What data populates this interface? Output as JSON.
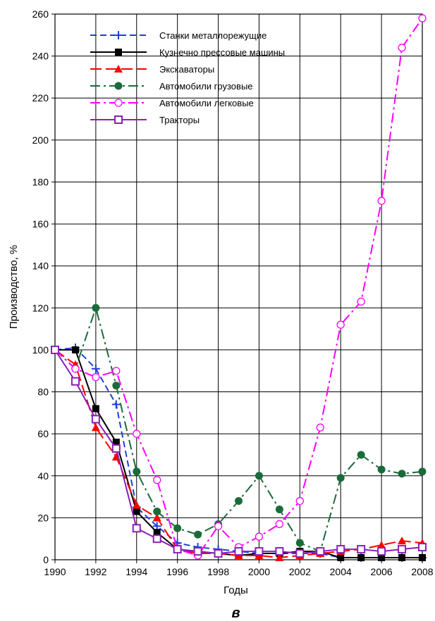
{
  "chart_data": {
    "type": "line",
    "title": "",
    "xlabel": "Годы",
    "ylabel": "Производство, %",
    "panel_label": "в",
    "xlim": [
      1990,
      2008
    ],
    "ylim": [
      0,
      260
    ],
    "x_ticks": [
      1990,
      1992,
      1994,
      1996,
      1998,
      2000,
      2002,
      2004,
      2006,
      2008
    ],
    "y_ticks": [
      0,
      20,
      40,
      60,
      80,
      100,
      120,
      140,
      160,
      180,
      200,
      220,
      240,
      260
    ],
    "grid": true,
    "legend_position": "top-left",
    "x": [
      1990,
      1991,
      1992,
      1993,
      1994,
      1995,
      1996,
      1997,
      1998,
      1999,
      2000,
      2001,
      2002,
      2003,
      2004,
      2005,
      2006,
      2007,
      2008
    ],
    "series": [
      {
        "name": "Станки металлорежущие",
        "color": "#1f3fd8",
        "dash": "dashed",
        "marker": "plus",
        "values": [
          100,
          101,
          91,
          74,
          25,
          16,
          8,
          6,
          5,
          4,
          3,
          3,
          3,
          3,
          1,
          1,
          1,
          1,
          1
        ]
      },
      {
        "name": "Кузнечно прессовые машины",
        "color": "#000000",
        "dash": "solid",
        "marker": "square-filled",
        "values": [
          100,
          100,
          72,
          56,
          23,
          13,
          5,
          4,
          3,
          2,
          3,
          3,
          4,
          4,
          1,
          1,
          1,
          1,
          1
        ]
      },
      {
        "name": "Экскаваторы",
        "color": "#ff0000",
        "dash": "longdash",
        "marker": "triangle-filled",
        "values": [
          100,
          93,
          63,
          49,
          26,
          20,
          5,
          3,
          3,
          2,
          2,
          1,
          2,
          3,
          4,
          5,
          7,
          9,
          8
        ]
      },
      {
        "name": "Автомобили грузовые",
        "color": "#1a6b3a",
        "dash": "dashdot",
        "marker": "circle-filled",
        "values": [
          100,
          91,
          120,
          83,
          42,
          23,
          15,
          12,
          17,
          28,
          40,
          24,
          8,
          4,
          39,
          50,
          43,
          41,
          42
        ]
      },
      {
        "name": "Автомобили легковые",
        "color": "#ff00ff",
        "dash": "dashdot",
        "marker": "circle-open",
        "values": [
          100,
          91,
          87,
          90,
          60,
          38,
          5,
          2,
          16,
          6,
          11,
          17,
          28,
          63,
          112,
          123,
          171,
          244,
          258
        ]
      },
      {
        "name": "Тракторы",
        "color": "#8b1fb8",
        "dash": "solid",
        "marker": "square-open",
        "values": [
          100,
          85,
          67,
          53,
          15,
          10,
          5,
          4,
          3,
          4,
          4,
          4,
          3,
          4,
          5,
          5,
          4,
          5,
          6
        ]
      }
    ]
  }
}
